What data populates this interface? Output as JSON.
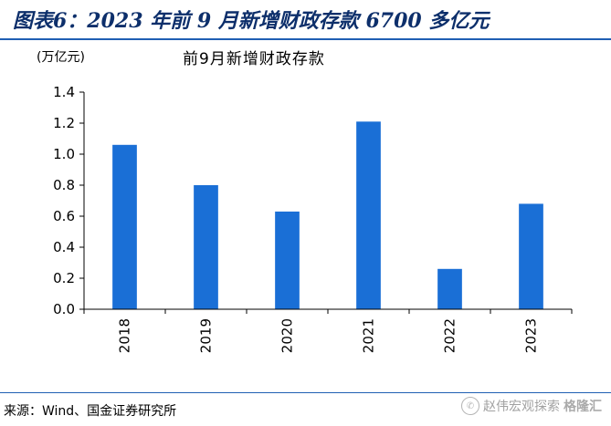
{
  "figure": {
    "title": "图表6：2023 年前 9 月新增财政存款 6700 多亿元",
    "source": "来源：Wind、国金证券研究所",
    "watermark_text": "赵伟宏观探索",
    "watermark_logo": "格隆汇",
    "watermark_icon": "wechat-icon",
    "accent_color": "#1f5fb3",
    "title_color": "#0d2f6b"
  },
  "chart_data": {
    "type": "bar",
    "title": "前9月新增财政存款",
    "unit_label": "(万亿元)",
    "xlabel": "",
    "ylabel": "",
    "categories": [
      "2018",
      "2019",
      "2020",
      "2021",
      "2022",
      "2023"
    ],
    "values": [
      1.06,
      0.8,
      0.63,
      1.21,
      0.26,
      0.68
    ],
    "ylim": [
      0,
      1.4
    ],
    "yticks": [
      0.0,
      0.2,
      0.4,
      0.6,
      0.8,
      1.0,
      1.2,
      1.4
    ],
    "ytick_labels": [
      "0.0",
      "0.2",
      "0.4",
      "0.6",
      "0.8",
      "1.0",
      "1.2",
      "1.4"
    ],
    "bar_color": "#1a6fd6",
    "grid": false,
    "legend": "none"
  }
}
